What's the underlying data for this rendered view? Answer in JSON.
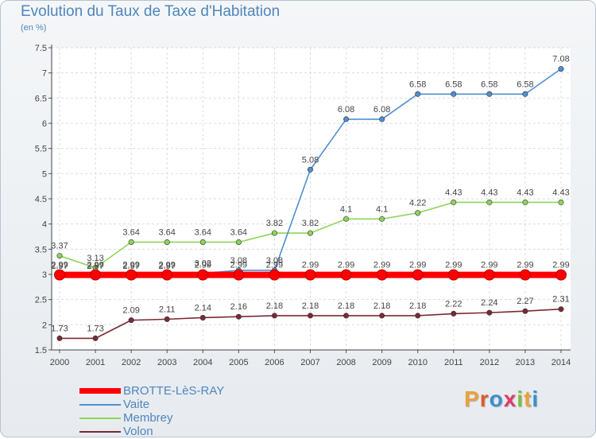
{
  "chart_title": "Evolution du Taux de Taxe d'Habitation",
  "chart_subtitle": "(en %)",
  "brand": {
    "letters": [
      "P",
      "r",
      "o",
      "x",
      "i",
      "t",
      "i"
    ],
    "colors": [
      "#e8a23a",
      "#e05a2b",
      "#3a8fd0",
      "#e03a6a",
      "#7cbf3a",
      "#e8a23a",
      "#3a8fd0"
    ]
  },
  "chart_data": {
    "type": "line",
    "x": [
      "2000",
      "2001",
      "2002",
      "2003",
      "2004",
      "2005",
      "2006",
      "2007",
      "2008",
      "2009",
      "2010",
      "2011",
      "2012",
      "2013",
      "2014"
    ],
    "ylim": [
      1.5,
      7.5
    ],
    "yticks": [
      "1.5",
      "2",
      "2.5",
      "3",
      "3.5",
      "4",
      "4.5",
      "5",
      "5.5",
      "6",
      "6.5",
      "7",
      "7.5"
    ],
    "grid": true,
    "legend_position": "bottom-left",
    "series": [
      {
        "name": "BROTTE-LèS-RAY",
        "color": "#ff0000",
        "values": [
          2.99,
          2.99,
          2.99,
          2.99,
          2.99,
          2.99,
          2.99,
          2.99,
          2.99,
          2.99,
          2.99,
          2.99,
          2.99,
          2.99,
          2.99
        ],
        "labels": [
          "2.99",
          "2.99",
          "2.99",
          "2.99",
          "2.99",
          "2.99",
          "2.99",
          "2.99",
          "2.99",
          "2.99",
          "2.99",
          "2.99",
          "2.99",
          "2.99",
          "2.99"
        ]
      },
      {
        "name": "Vaite",
        "color": "#4f8fcf",
        "values": [
          2.97,
          2.97,
          2.97,
          2.97,
          3.02,
          3.08,
          3.08,
          5.08,
          6.08,
          6.08,
          6.58,
          6.58,
          6.58,
          6.58,
          7.08
        ],
        "labels": [
          "2.97",
          "2.97",
          "2.97",
          "2.97",
          "3.02",
          "3.08",
          "3.08",
          "5.08",
          "6.08",
          "6.08",
          "6.58",
          "6.58",
          "6.58",
          "6.58",
          "7.08"
        ]
      },
      {
        "name": "Membrey",
        "color": "#8ed45a",
        "values": [
          3.37,
          3.13,
          3.64,
          3.64,
          3.64,
          3.64,
          3.82,
          3.82,
          4.1,
          4.1,
          4.22,
          4.43,
          4.43,
          4.43,
          4.43
        ],
        "labels": [
          "3.37",
          "3.13",
          "3.64",
          "3.64",
          "3.64",
          "3.64",
          "3.82",
          "3.82",
          "4.1",
          "4.1",
          "4.22",
          "4.43",
          "4.43",
          "4.43",
          "4.43"
        ]
      },
      {
        "name": "Volon",
        "color": "#7a2a33",
        "values": [
          1.73,
          1.73,
          2.09,
          2.11,
          2.14,
          2.16,
          2.18,
          2.18,
          2.18,
          2.18,
          2.18,
          2.22,
          2.24,
          2.27,
          2.31
        ],
        "labels": [
          "1.73",
          "1.73",
          "2.09",
          "2.11",
          "2.14",
          "2.16",
          "2.18",
          "2.18",
          "2.18",
          "2.18",
          "2.18",
          "2.22",
          "2.24",
          "2.27",
          "2.31"
        ]
      }
    ]
  }
}
